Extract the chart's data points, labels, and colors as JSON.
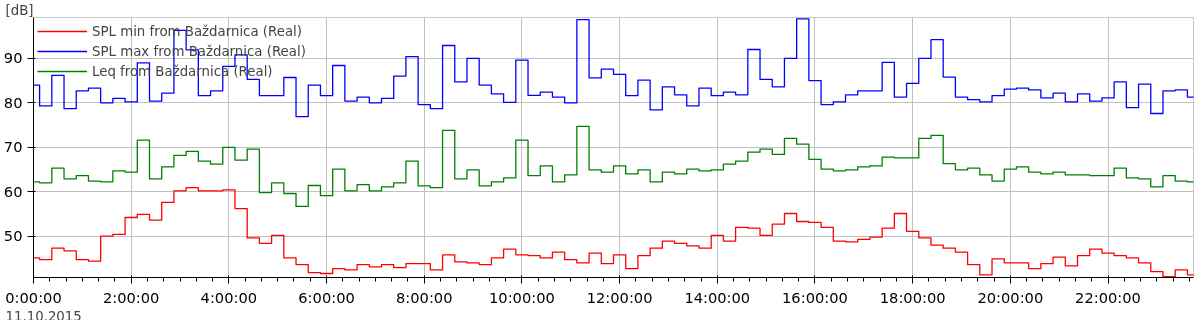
{
  "chart_data": {
    "type": "step",
    "ylabel": "[dB]",
    "x": [
      0,
      0.25,
      0.5,
      0.75,
      1,
      1.25,
      1.5,
      1.75,
      2,
      2.25,
      2.5,
      2.75,
      3,
      3.25,
      3.5,
      3.75,
      4,
      4.25,
      4.5,
      4.75,
      5,
      5.25,
      5.5,
      5.75,
      6,
      6.25,
      6.5,
      6.75,
      7,
      7.25,
      7.5,
      7.75,
      8,
      8.25,
      8.5,
      8.75,
      9,
      9.25,
      9.5,
      9.75,
      10,
      10.25,
      10.5,
      10.75,
      11,
      11.25,
      11.5,
      11.75,
      12,
      12.25,
      12.5,
      12.75,
      13,
      13.25,
      13.5,
      13.75,
      14,
      14.25,
      14.5,
      14.75,
      15,
      15.25,
      15.5,
      15.75,
      16,
      16.25,
      16.5,
      16.75,
      17,
      17.25,
      17.5,
      17.75,
      18,
      18.25,
      18.5,
      18.75,
      19,
      19.25,
      19.5,
      19.75,
      20,
      20.25,
      20.5,
      20.75,
      21,
      21.25,
      21.5,
      21.75,
      22,
      22.25,
      22.5,
      22.75,
      23,
      23.25,
      23.5,
      23.75
    ],
    "series": [
      {
        "name": "SPL min from Baždarnica (Real)",
        "color": "#ff0000",
        "values": [
          45.1,
          44.7,
          47.3,
          46.7,
          44.7,
          44.4,
          50.0,
          50.4,
          54.2,
          54.9,
          53.6,
          57.6,
          60.2,
          60.9,
          60.2,
          60.2,
          60.4,
          56.2,
          49.6,
          48.4,
          50.2,
          45.1,
          43.6,
          41.8,
          41.6,
          42.7,
          42.4,
          43.6,
          43.1,
          43.6,
          42.9,
          43.8,
          43.8,
          42.4,
          45.8,
          44.2,
          44.0,
          43.6,
          45.1,
          47.1,
          45.8,
          45.6,
          45.1,
          46.4,
          44.7,
          44.0,
          46.2,
          43.8,
          45.8,
          42.7,
          45.6,
          47.3,
          48.9,
          48.4,
          47.8,
          47.3,
          50.2,
          48.9,
          52.0,
          51.8,
          50.2,
          52.7,
          55.1,
          53.3,
          53.1,
          52.0,
          48.9,
          48.7,
          49.3,
          49.8,
          51.8,
          55.1,
          51.1,
          49.6,
          48.0,
          47.3,
          46.4,
          43.6,
          41.3,
          44.9,
          44.0,
          44.0,
          42.7,
          43.8,
          45.3,
          43.3,
          45.6,
          47.1,
          46.2,
          45.6,
          45.1,
          44.0,
          42.0,
          40.9,
          42.4,
          41.3
        ]
      },
      {
        "name": "SPL max from Baždarnica (Real)",
        "color": "#0000ff",
        "values": [
          84.0,
          79.3,
          86.2,
          78.7,
          82.7,
          83.3,
          80.0,
          81.0,
          80.2,
          89.0,
          80.4,
          82.2,
          96.3,
          91.9,
          81.6,
          82.7,
          88.2,
          90.8,
          85.3,
          81.6,
          81.6,
          85.7,
          76.9,
          84.0,
          81.6,
          88.4,
          80.4,
          81.3,
          80.0,
          81.0,
          86.0,
          90.4,
          79.6,
          78.7,
          92.9,
          84.7,
          90.0,
          84.0,
          82.0,
          80.1,
          89.6,
          81.7,
          82.4,
          81.3,
          80.0,
          98.7,
          85.6,
          87.6,
          86.4,
          81.6,
          85.1,
          78.4,
          83.6,
          81.8,
          79.3,
          83.3,
          81.6,
          82.4,
          81.8,
          92.0,
          85.3,
          83.6,
          90.0,
          98.9,
          85.0,
          79.6,
          80.2,
          81.8,
          82.7,
          82.7,
          89.1,
          81.3,
          84.4,
          90.0,
          94.2,
          85.8,
          81.3,
          80.7,
          80.2,
          81.6,
          83.1,
          83.3,
          82.9,
          81.1,
          82.2,
          80.2,
          82.0,
          80.4,
          81.1,
          84.7,
          78.9,
          84.2,
          77.6,
          82.7,
          82.9,
          81.3
        ]
      },
      {
        "name": "Leq from Baždarnica (Real)",
        "color": "#008000",
        "values": [
          62.2,
          62.0,
          65.3,
          62.9,
          63.6,
          62.4,
          62.2,
          64.7,
          64.4,
          71.6,
          62.9,
          65.6,
          68.2,
          69.1,
          66.9,
          66.2,
          70.0,
          67.1,
          69.6,
          59.8,
          62.0,
          59.6,
          56.7,
          61.4,
          59.1,
          65.1,
          60.2,
          61.6,
          60.2,
          61.1,
          62.0,
          66.9,
          61.3,
          60.9,
          73.8,
          62.9,
          64.9,
          61.3,
          62.2,
          63.1,
          71.6,
          63.6,
          65.8,
          62.2,
          63.8,
          74.7,
          64.9,
          64.4,
          65.8,
          64.0,
          64.9,
          62.2,
          64.4,
          64.0,
          65.1,
          64.7,
          64.9,
          66.2,
          66.9,
          68.9,
          69.6,
          68.4,
          72.0,
          70.7,
          67.3,
          65.1,
          64.7,
          64.9,
          65.6,
          65.8,
          67.8,
          67.6,
          67.6,
          72.0,
          72.7,
          66.3,
          64.9,
          65.3,
          63.8,
          62.4,
          65.1,
          65.6,
          64.4,
          64.0,
          64.4,
          63.8,
          63.8,
          63.6,
          63.6,
          65.3,
          63.1,
          62.9,
          61.1,
          63.6,
          62.4,
          62.2
        ]
      }
    ],
    "xlim": [
      0,
      23.75
    ],
    "ylim": [
      40.7,
      99.2
    ],
    "xticks": [
      {
        "value": 0,
        "label": "0:00:00"
      },
      {
        "value": 2,
        "label": "2:00:00"
      },
      {
        "value": 4,
        "label": "4:00:00"
      },
      {
        "value": 6,
        "label": "6:00:00"
      },
      {
        "value": 8,
        "label": "8:00:00"
      },
      {
        "value": 10,
        "label": "10:00:00"
      },
      {
        "value": 12,
        "label": "12:00:00"
      },
      {
        "value": 14,
        "label": "14:00:00"
      },
      {
        "value": 16,
        "label": "16:00:00"
      },
      {
        "value": 18,
        "label": "18:00:00"
      },
      {
        "value": 20,
        "label": "20:00:00"
      },
      {
        "value": 22,
        "label": "22:00:00"
      }
    ],
    "yticks": [
      50,
      60,
      70,
      80,
      90
    ],
    "annotations": [
      "11.10.2015"
    ],
    "grid": true,
    "legend": "top left"
  }
}
